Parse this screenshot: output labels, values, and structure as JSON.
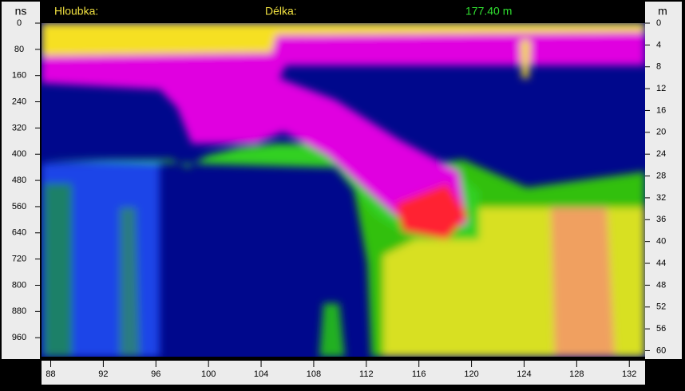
{
  "chart_data": {
    "type": "radargram",
    "depth_label": "Hloubka:",
    "length_label": "Délka:",
    "length_value": "177.40 m",
    "ylabel": "ns",
    "y2label": "m",
    "ylim": [
      0,
      1018
    ],
    "yticks": [
      0,
      80,
      160,
      240,
      320,
      400,
      480,
      560,
      640,
      720,
      800,
      880,
      960
    ],
    "y2lim": [
      0,
      61.1
    ],
    "y2ticks": [
      0,
      4,
      8,
      12,
      16,
      20,
      24,
      28,
      32,
      36,
      40,
      44,
      48,
      52,
      56,
      60
    ],
    "xlim": [
      87.3,
      133.2
    ],
    "xticks": [
      88,
      92,
      96,
      100,
      104,
      108,
      112,
      116,
      120,
      124,
      128,
      132
    ]
  }
}
